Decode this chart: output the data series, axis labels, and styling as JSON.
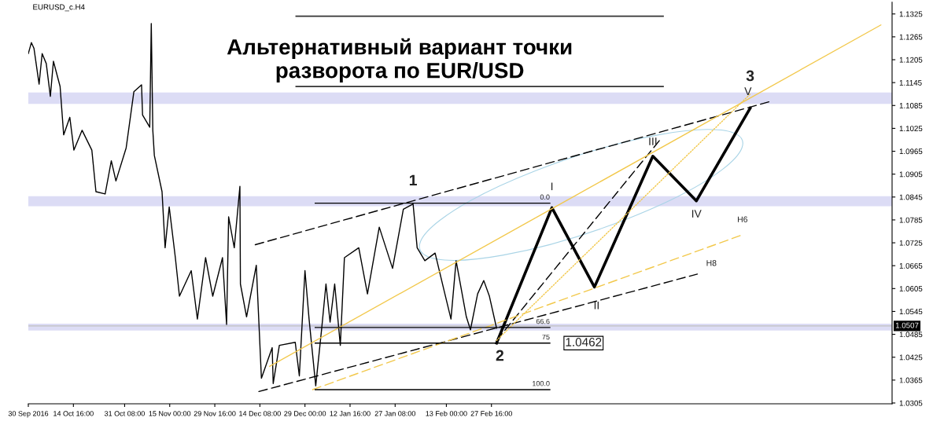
{
  "chart_data": {
    "type": "line",
    "title": "Альтернативный вариант точки\nразворота по EUR/USD",
    "xlim": [
      "2016-09-30T00:00",
      "2017-07-08T00:00"
    ],
    "ylim": [
      1.0303,
      1.1356
    ],
    "xticks": [
      {
        "value": "2016-09-30T00:00",
        "label": "30 Sep 2016"
      },
      {
        "value": "2016-10-14T16:00",
        "label": "14 Oct 16:00"
      },
      {
        "value": "2016-10-31T08:00",
        "label": "31 Oct 08:00"
      },
      {
        "value": "2016-11-15T00:00",
        "label": "15 Nov 00:00"
      },
      {
        "value": "2016-11-29T16:00",
        "label": "29 Nov 16:00"
      },
      {
        "value": "2016-12-14T08:00",
        "label": "14 Dec 08:00"
      },
      {
        "value": "2016-12-29T00:00",
        "label": "29 Dec 00:00"
      },
      {
        "value": "2017-01-12T16:00",
        "label": "12 Jan 16:00"
      },
      {
        "value": "2017-01-27T08:00",
        "label": "27 Jan 08:00"
      },
      {
        "value": "2017-02-13T00:00",
        "label": "13 Feb 00:00"
      },
      {
        "value": "2017-02-27T16:00",
        "label": "27 Feb 16:00"
      }
    ],
    "yticks": [
      1.0305,
      1.0365,
      1.0425,
      1.0485,
      1.0545,
      1.0605,
      1.0665,
      1.0725,
      1.0785,
      1.0845,
      1.0905,
      1.0965,
      1.1025,
      1.1085,
      1.1145,
      1.1205,
      1.1265,
      1.1325
    ],
    "grid": false,
    "legend": false,
    "marker": "none",
    "series": [
      {
        "color": "#000000",
        "line_style": "solid",
        "x": [
          "2016-09-30T00:00",
          "2016-10-01T00:00",
          "2016-10-01T20:00",
          "2016-10-03T12:00",
          "2016-10-04T12:00",
          "2016-10-05T20:00",
          "2016-10-07T04:00",
          "2016-10-08T04:00",
          "2016-10-10T08:00",
          "2016-10-11T12:00",
          "2016-10-13T12:00",
          "2016-10-14T20:00",
          "2016-10-17T12:00",
          "2016-10-20T16:00",
          "2016-10-22T00:00",
          "2016-10-25T00:00",
          "2016-10-27T00:00",
          "2016-10-28T12:00",
          "2016-10-31T20:00",
          "2016-11-03T08:00",
          "2016-11-05T20:00",
          "2016-11-06T04:00",
          "2016-11-08T12:00",
          "2016-11-09T00:00",
          "2016-11-09T12:00",
          "2016-11-10T00:00",
          "2016-11-12T12:00",
          "2016-11-13T12:00",
          "2016-11-14T20:00",
          "2016-11-16T20:00",
          "2016-11-18T04:00",
          "2016-11-22T00:00",
          "2016-11-24T00:00",
          "2016-11-26T16:00",
          "2016-11-29T00:00",
          "2016-12-02T04:00",
          "2016-12-03T12:00",
          "2016-12-04T04:00",
          "2016-12-06T00:00",
          "2016-12-07T20:00",
          "2016-12-08T00:00",
          "2016-12-10T00:00",
          "2016-12-13T04:00",
          "2016-12-14T20:00",
          "2016-12-18T08:00",
          "2016-12-18T16:00",
          "2016-12-20T16:00",
          "2016-12-25T20:00",
          "2016-12-27T04:00",
          "2016-12-29T00:00",
          "2016-12-30T08:00",
          "2017-01-01T12:00",
          "2017-01-03T12:00",
          "2017-01-04T20:00",
          "2017-01-06T04:00",
          "2017-01-07T16:00",
          "2017-01-09T12:00",
          "2017-01-10T20:00",
          "2017-01-15T12:00",
          "2017-01-18T08:00",
          "2017-01-22T04:00",
          "2017-01-26T12:00",
          "2017-01-30T00:00",
          "2017-02-02T04:00",
          "2017-02-03T12:00",
          "2017-02-06T00:00",
          "2017-02-09T08:00",
          "2017-02-12T08:00",
          "2017-02-14T12:00",
          "2017-02-16T04:00",
          "2017-02-19T12:00",
          "2017-02-20T20:00",
          "2017-02-23T04:00",
          "2017-02-25T04:00",
          "2017-02-27T00:00",
          "2017-03-01T08:00"
        ],
        "values": [
          1.1221,
          1.125,
          1.1235,
          1.1141,
          1.1221,
          1.1195,
          1.1109,
          1.1201,
          1.1135,
          1.1008,
          1.1054,
          1.0968,
          1.102,
          1.0968,
          1.0859,
          1.0853,
          1.094,
          1.0887,
          1.0974,
          1.1121,
          1.1139,
          1.106,
          1.1028,
          1.13,
          1.102,
          1.0954,
          1.0859,
          1.0712,
          1.0819,
          1.0686,
          1.0585,
          1.0652,
          1.0525,
          1.0686,
          1.0585,
          1.0686,
          1.0511,
          1.0793,
          1.0712,
          1.0873,
          1.0617,
          1.0531,
          1.0666,
          1.037,
          1.045,
          1.0356,
          1.0456,
          1.0464,
          1.0376,
          1.0652,
          1.0525,
          1.035,
          1.0505,
          1.0617,
          1.0517,
          1.0617,
          1.0456,
          1.0686,
          1.0712,
          1.0591,
          1.0766,
          1.0658,
          1.0813,
          1.0827,
          1.0712,
          1.0678,
          1.0698,
          1.0597,
          1.0525,
          1.0678,
          1.0531,
          1.0497,
          1.0591,
          1.0626,
          1.0585,
          1.0501
        ]
      },
      {
        "color": "#000000",
        "line_style": "solid",
        "x": [
          "2017-03-01T08:00",
          "2017-03-19T08:00",
          "2017-04-02T04:00",
          "2017-04-21T04:00",
          "2017-05-05T08:00",
          "2017-05-22T20:00"
        ],
        "values": [
          1.0462,
          1.0817,
          1.0609,
          1.0952,
          1.0835,
          1.1078
        ]
      },
      {
        "color": "#000000",
        "line_style": "dashed",
        "x": [
          "2016-12-12T20:00",
          "2017-05-29T04:00"
        ],
        "values": [
          1.072,
          1.1095
        ]
      },
      {
        "color": "#000000",
        "line_style": "dashed",
        "x": [
          "2016-12-14T00:00",
          "2017-05-05T16:00"
        ],
        "values": [
          1.0335,
          1.0643
        ]
      },
      {
        "color": "#000000",
        "line_style": "dashed",
        "x": [
          "2017-03-01T08:00",
          "2017-04-23T12:00"
        ],
        "values": [
          1.0469,
          1.0995
        ]
      },
      {
        "color": "#f2c84b",
        "line_style": "solid",
        "x": [
          "2016-12-17T12:00",
          "2017-07-04T08:00"
        ],
        "values": [
          1.0401,
          1.1296
        ]
      },
      {
        "color": "#f2c84b",
        "line_style": "dashed",
        "x": [
          "2016-12-31T12:00",
          "2017-05-20T08:00"
        ],
        "values": [
          1.034,
          1.0746
        ]
      },
      {
        "color": "#f2c84b",
        "line_style": "dotted",
        "x": [
          "2017-03-01T08:00",
          "2017-05-22T20:00"
        ],
        "values": [
          1.0469,
          1.1115
        ]
      },
      {
        "color": "#000000",
        "line_style": "solid",
        "x": [
          "2017-01-01T08:00",
          "2017-03-18T16:00"
        ],
        "values": [
          1.0829,
          1.0829
        ]
      },
      {
        "color": "#000000",
        "line_style": "solid",
        "x": [
          "2017-01-01T08:00",
          "2017-03-18T16:00"
        ],
        "values": [
          1.0503,
          1.0503
        ]
      },
      {
        "color": "#000000",
        "line_style": "solid",
        "x": [
          "2017-01-01T08:00",
          "2017-03-18T16:00"
        ],
        "values": [
          1.0462,
          1.0462
        ]
      },
      {
        "color": "#000000",
        "line_style": "solid",
        "x": [
          "2017-01-01T08:00",
          "2017-03-18T16:00"
        ],
        "values": [
          1.034,
          1.034
        ]
      }
    ],
    "bands": [
      {
        "axis": "y",
        "from": 1.1089,
        "to": 1.1119,
        "color": "#dcdcf5"
      },
      {
        "axis": "y",
        "from": 1.0821,
        "to": 1.0847,
        "color": "#dcdcf5"
      },
      {
        "axis": "y",
        "from": 1.0495,
        "to": 1.0513,
        "color": "#dcdcf5"
      }
    ],
    "ref_lines": [
      {
        "axis": "y",
        "value": 1.0507,
        "label": "1.0507",
        "color": "#c0c0c0"
      }
    ],
    "annotations": [
      "EURUSD_c.H4",
      {
        "text": "1",
        "x": "2017-02-02T04:00",
        "y": 1.0827
      },
      {
        "text": "2",
        "x": "2017-03-01T08:00",
        "y": 1.0462
      },
      {
        "text": "3",
        "x": "2017-05-22T20:00",
        "y": 1.1078
      },
      {
        "text": "I",
        "x": "2017-03-19T08:00",
        "y": 1.0817
      },
      {
        "text": "II",
        "x": "2017-04-02T04:00",
        "y": 1.0609
      },
      {
        "text": "III",
        "x": "2017-04-21T04:00",
        "y": 1.0952
      },
      {
        "text": "IV",
        "x": "2017-05-05T08:00",
        "y": 1.0835
      },
      {
        "text": "V",
        "x": "2017-05-22T20:00",
        "y": 1.1078
      },
      {
        "text": "H6",
        "x": "2017-05-20T08:00",
        "y": 1.0746
      },
      {
        "text": "H8",
        "x": "2017-05-05T16:00",
        "y": 1.0643
      },
      {
        "text": "0.0",
        "x": "2017-03-18T16:00",
        "y": 1.0829
      },
      {
        "text": "66.6",
        "x": "2017-03-18T16:00",
        "y": 1.0503
      },
      {
        "text": "75",
        "x": "2017-03-18T16:00",
        "y": 1.0462
      },
      {
        "text": "100.0",
        "x": "2017-03-18T16:00",
        "y": 1.034
      },
      {
        "text": "1.0462",
        "x": "2017-03-18T16:00",
        "y": 1.0462
      }
    ]
  }
}
